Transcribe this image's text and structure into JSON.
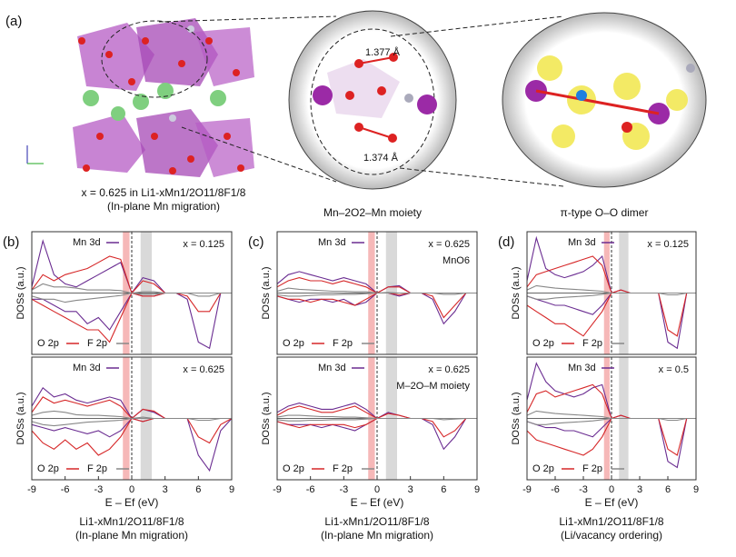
{
  "figure_a": {
    "label": "(a)",
    "bond_lengths": [
      "1.377 Å",
      "1.374 Å"
    ],
    "captions": [
      [
        "x = 0.625 in Li1-xMn1/2O11/8F1/8",
        "(In-plane Mn migration)"
      ],
      [
        "Mn–2O2–Mn moiety"
      ],
      [
        "π-type O–O dimer"
      ]
    ]
  },
  "chart_data": [
    {
      "type": "line",
      "panel_label": "(b)",
      "ylabel": "DOSs (a.u.)",
      "annotation": "x = 0.125",
      "xlim": [
        -9,
        9
      ],
      "ylim": [
        -1,
        1
      ],
      "fermi_level": 0,
      "highlights": [
        {
          "range": [
            -0.8,
            -0.2
          ],
          "color": "#f4a6a6"
        },
        {
          "range": [
            0.8,
            1.8
          ],
          "color": "#cfcfcf"
        }
      ],
      "x": [
        -9,
        -8,
        -7,
        -6,
        -5,
        -4,
        -3,
        -2,
        -1,
        0,
        1,
        2,
        3,
        4,
        5,
        6,
        7,
        8,
        9
      ],
      "series": [
        {
          "name": "Mn 3d",
          "color": "#6a2c91",
          "values": [
            0.1,
            0.85,
            0.3,
            0.15,
            0.1,
            0.2,
            0.3,
            0.4,
            0.5,
            0,
            0.25,
            0.2,
            0,
            0,
            0,
            0,
            0,
            0,
            0
          ],
          "values_down": [
            -0.1,
            -0.1,
            -0.2,
            -0.3,
            -0.3,
            -0.5,
            -0.4,
            -0.6,
            -0.3,
            0,
            -0.05,
            -0.05,
            0,
            0,
            -0.1,
            -0.8,
            -0.9,
            0,
            0
          ]
        },
        {
          "name": "O 2p",
          "color": "#d62728",
          "values": [
            0.05,
            0.3,
            0.2,
            0.3,
            0.35,
            0.4,
            0.5,
            0.6,
            0.55,
            0,
            0.2,
            0.15,
            0,
            0,
            0,
            0,
            0,
            0,
            0
          ],
          "values_down": [
            -0.1,
            -0.2,
            -0.3,
            -0.4,
            -0.5,
            -0.6,
            -0.6,
            -0.8,
            -0.4,
            0,
            -0.05,
            -0.05,
            0,
            0,
            -0.05,
            -0.3,
            -0.3,
            0,
            0
          ]
        },
        {
          "name": "F 2p",
          "color": "#888888",
          "values": [
            0.05,
            0.15,
            0.1,
            0.1,
            0.08,
            0.05,
            0.05,
            0.05,
            0.04,
            0,
            0.02,
            0.02,
            0,
            0,
            0,
            0,
            0,
            0,
            0
          ],
          "values_down": [
            -0.05,
            -0.1,
            -0.1,
            -0.15,
            -0.12,
            -0.1,
            -0.08,
            -0.06,
            -0.04,
            0,
            -0.02,
            -0.02,
            0,
            0,
            0,
            -0.05,
            -0.05,
            0,
            0
          ]
        }
      ]
    },
    {
      "type": "line",
      "ylabel": "DOSs (a.u.)",
      "annotation": "x = 0.625",
      "xlabel": "E – Ef (eV)",
      "caption": [
        "Li1-xMn1/2O11/8F1/8",
        "(In-plane Mn migration)"
      ],
      "xlim": [
        -9,
        9
      ],
      "ylim": [
        -1,
        1
      ],
      "xticks": [
        -9,
        -6,
        -3,
        0,
        3,
        6,
        9
      ],
      "fermi_level": 0,
      "highlights": [
        {
          "range": [
            -0.8,
            -0.2
          ],
          "color": "#f4a6a6"
        },
        {
          "range": [
            0.8,
            1.8
          ],
          "color": "#cfcfcf"
        }
      ],
      "x": [
        -9,
        -8,
        -7,
        -6,
        -5,
        -4,
        -3,
        -2,
        -1,
        0,
        1,
        2,
        3,
        4,
        5,
        6,
        7,
        8,
        9
      ],
      "series": [
        {
          "name": "Mn 3d",
          "color": "#6a2c91",
          "values": [
            0.2,
            0.5,
            0.35,
            0.4,
            0.3,
            0.25,
            0.3,
            0.35,
            0.3,
            0,
            0.15,
            0.1,
            0,
            0,
            0,
            0,
            0,
            0,
            0
          ],
          "values_down": [
            -0.1,
            -0.15,
            -0.2,
            -0.15,
            -0.2,
            -0.25,
            -0.2,
            -0.3,
            -0.2,
            0,
            -0.05,
            0,
            0,
            0,
            0,
            -0.6,
            -0.85,
            -0.2,
            0
          ]
        },
        {
          "name": "O 2p",
          "color": "#d62728",
          "values": [
            0.1,
            0.35,
            0.25,
            0.3,
            0.25,
            0.2,
            0.25,
            0.3,
            0.2,
            0,
            0.15,
            0.12,
            0,
            0,
            0,
            0,
            0,
            0,
            0
          ],
          "values_down": [
            -0.2,
            -0.4,
            -0.5,
            -0.35,
            -0.5,
            -0.4,
            -0.6,
            -0.5,
            -0.3,
            0,
            -0.05,
            0,
            0,
            0,
            0,
            -0.3,
            -0.4,
            -0.1,
            0
          ]
        },
        {
          "name": "F 2p",
          "color": "#888888",
          "values": [
            0.05,
            0.1,
            0.12,
            0.1,
            0.06,
            0.05,
            0.05,
            0.04,
            0.03,
            0,
            0.02,
            0,
            0,
            0,
            0,
            0,
            0,
            0,
            0
          ],
          "values_down": [
            -0.05,
            -0.1,
            -0.12,
            -0.1,
            -0.08,
            -0.06,
            -0.05,
            -0.04,
            -0.03,
            0,
            0,
            0,
            0,
            0,
            0,
            -0.03,
            -0.03,
            0,
            0
          ]
        }
      ]
    },
    {
      "type": "line",
      "panel_label": "(c)",
      "ylabel": "DOSs (a.u.)",
      "annotation": "x = 0.625",
      "note": "MnO6",
      "xlim": [
        -9,
        9
      ],
      "ylim": [
        -1,
        1
      ],
      "fermi_level": 0,
      "highlights": [
        {
          "range": [
            -0.8,
            -0.2
          ],
          "color": "#f4a6a6"
        },
        {
          "range": [
            0.8,
            1.8
          ],
          "color": "#cfcfcf"
        }
      ],
      "x": [
        -9,
        -8,
        -7,
        -6,
        -5,
        -4,
        -3,
        -2,
        -1,
        0,
        1,
        2,
        3,
        4,
        5,
        6,
        7,
        8,
        9
      ],
      "series": [
        {
          "name": "Mn 3d",
          "color": "#6a2c91",
          "values": [
            0.15,
            0.3,
            0.35,
            0.3,
            0.25,
            0.2,
            0.25,
            0.2,
            0.15,
            0,
            0.1,
            0.12,
            0,
            0,
            0,
            0,
            0,
            0,
            0
          ],
          "values_down": [
            -0.05,
            -0.1,
            -0.15,
            -0.1,
            -0.1,
            -0.15,
            -0.1,
            -0.2,
            -0.15,
            0,
            0,
            -0.05,
            0,
            0,
            -0.1,
            -0.5,
            -0.3,
            0,
            0
          ]
        },
        {
          "name": "O 2p",
          "color": "#d62728",
          "values": [
            0.1,
            0.2,
            0.25,
            0.2,
            0.2,
            0.15,
            0.2,
            0.15,
            0.1,
            0,
            0.1,
            0.1,
            0,
            0,
            0,
            0,
            0,
            0,
            0
          ],
          "values_down": [
            -0.05,
            -0.1,
            -0.1,
            -0.15,
            -0.1,
            -0.1,
            -0.15,
            -0.2,
            -0.1,
            0,
            0,
            -0.03,
            0,
            0,
            -0.05,
            -0.4,
            -0.2,
            0,
            0
          ]
        },
        {
          "name": "F 2p",
          "color": "#888888",
          "values": [
            0.03,
            0.08,
            0.06,
            0.05,
            0.04,
            0.03,
            0.03,
            0.02,
            0.02,
            0,
            0.01,
            0,
            0,
            0,
            0,
            0,
            0,
            0,
            0
          ],
          "values_down": [
            -0.03,
            -0.05,
            -0.05,
            -0.04,
            -0.03,
            -0.03,
            -0.02,
            -0.02,
            -0.01,
            0,
            0,
            0,
            0,
            0,
            0,
            -0.02,
            -0.02,
            0,
            0
          ]
        }
      ]
    },
    {
      "type": "line",
      "ylabel": "DOSs (a.u.)",
      "annotation": "x = 0.625",
      "note": "M–2O–M moiety",
      "xlabel": "E – Ef (eV)",
      "caption": [
        "Li1-xMn1/2O11/8F1/8",
        "(In-plane Mn migration)"
      ],
      "xlim": [
        -9,
        9
      ],
      "ylim": [
        -1,
        1
      ],
      "xticks": [
        -9,
        -6,
        -3,
        0,
        3,
        6,
        9
      ],
      "fermi_level": 0,
      "highlights": [
        {
          "range": [
            -0.8,
            -0.2
          ],
          "color": "#f4a6a6"
        },
        {
          "range": [
            0.8,
            1.8
          ],
          "color": "#cfcfcf"
        }
      ],
      "x": [
        -9,
        -8,
        -7,
        -6,
        -5,
        -4,
        -3,
        -2,
        -1,
        0,
        1,
        2,
        3,
        4,
        5,
        6,
        7,
        8,
        9
      ],
      "series": [
        {
          "name": "Mn 3d",
          "color": "#6a2c91",
          "values": [
            0.1,
            0.2,
            0.25,
            0.2,
            0.15,
            0.15,
            0.2,
            0.25,
            0.15,
            0,
            0.1,
            0.05,
            0,
            0,
            0,
            0,
            0,
            0,
            0
          ],
          "values_down": [
            -0.05,
            -0.1,
            -0.1,
            -0.1,
            -0.15,
            -0.1,
            -0.15,
            -0.2,
            -0.1,
            0,
            0,
            0,
            0,
            0,
            -0.1,
            -0.5,
            -0.3,
            0,
            0
          ]
        },
        {
          "name": "O 2p",
          "color": "#d62728",
          "values": [
            0.05,
            0.15,
            0.2,
            0.15,
            0.1,
            0.1,
            0.15,
            0.2,
            0.1,
            0,
            0.08,
            0.05,
            0,
            0,
            0,
            0,
            0,
            0,
            0
          ],
          "values_down": [
            -0.05,
            -0.1,
            -0.15,
            -0.1,
            -0.1,
            -0.1,
            -0.1,
            -0.15,
            -0.1,
            0,
            0,
            0,
            0,
            0,
            -0.05,
            -0.3,
            -0.2,
            0,
            0
          ]
        },
        {
          "name": "F 2p",
          "color": "#888888",
          "values": [
            0.02,
            0.05,
            0.05,
            0.04,
            0.03,
            0.03,
            0.02,
            0.02,
            0.01,
            0,
            0,
            0,
            0,
            0,
            0,
            0,
            0,
            0,
            0
          ],
          "values_down": [
            -0.02,
            -0.04,
            -0.04,
            -0.03,
            -0.03,
            -0.02,
            -0.02,
            -0.02,
            -0.01,
            0,
            0,
            0,
            0,
            0,
            0,
            -0.02,
            -0.01,
            0,
            0
          ]
        }
      ]
    },
    {
      "type": "line",
      "panel_label": "(d)",
      "ylabel": "DOSs (a.u.)",
      "annotation": "x = 0.125",
      "xlim": [
        -9,
        9
      ],
      "ylim": [
        -1,
        1
      ],
      "fermi_level": 0,
      "highlights": [
        {
          "range": [
            -0.8,
            -0.2
          ],
          "color": "#f4a6a6"
        },
        {
          "range": [
            0.8,
            1.8
          ],
          "color": "#cfcfcf"
        }
      ],
      "x": [
        -9,
        -8,
        -7,
        -6,
        -5,
        -4,
        -3,
        -2,
        -1,
        0,
        1,
        2,
        3,
        4,
        5,
        6,
        7,
        8,
        9
      ],
      "series": [
        {
          "name": "Mn 3d",
          "color": "#6a2c91",
          "values": [
            0.2,
            0.9,
            0.4,
            0.3,
            0.25,
            0.3,
            0.35,
            0.45,
            0.6,
            0,
            0.05,
            0,
            0,
            0,
            0,
            0,
            0,
            0,
            0
          ],
          "values_down": [
            -0.05,
            -0.1,
            -0.15,
            -0.2,
            -0.2,
            -0.25,
            -0.3,
            -0.35,
            -0.2,
            0,
            0,
            0,
            0,
            0,
            0,
            -0.8,
            -0.9,
            0,
            0
          ]
        },
        {
          "name": "O 2p",
          "color": "#d62728",
          "values": [
            0.1,
            0.3,
            0.35,
            0.4,
            0.45,
            0.5,
            0.55,
            0.6,
            0.45,
            0,
            0.05,
            0,
            0,
            0,
            0,
            0,
            0,
            0,
            0
          ],
          "values_down": [
            -0.2,
            -0.3,
            -0.4,
            -0.5,
            -0.5,
            -0.6,
            -0.7,
            -0.5,
            -0.3,
            0,
            0,
            0,
            0,
            0,
            0,
            -0.6,
            -0.7,
            0,
            0
          ]
        },
        {
          "name": "F 2p",
          "color": "#888888",
          "values": [
            0.05,
            0.12,
            0.1,
            0.08,
            0.07,
            0.06,
            0.05,
            0.04,
            0.03,
            0,
            0,
            0,
            0,
            0,
            0,
            0,
            0,
            0,
            0
          ],
          "values_down": [
            -0.05,
            -0.1,
            -0.1,
            -0.08,
            -0.07,
            -0.06,
            -0.05,
            -0.04,
            -0.02,
            0,
            0,
            0,
            0,
            0,
            0,
            -0.03,
            -0.03,
            0,
            0
          ]
        }
      ]
    },
    {
      "type": "line",
      "ylabel": "DOSs (a.u.)",
      "annotation": "x = 0.5",
      "xlabel": "E – Ef (eV)",
      "caption": [
        "Li1-xMn1/2O11/8F1/8",
        "(Li/vacancy ordering)"
      ],
      "xlim": [
        -9,
        9
      ],
      "ylim": [
        -1,
        1
      ],
      "xticks": [
        -9,
        -6,
        -3,
        0,
        3,
        6,
        9
      ],
      "fermi_level": 0,
      "highlights": [
        {
          "range": [
            -0.8,
            -0.2
          ],
          "color": "#f4a6a6"
        },
        {
          "range": [
            0.8,
            1.8
          ],
          "color": "#cfcfcf"
        }
      ],
      "x": [
        -9,
        -8,
        -7,
        -6,
        -5,
        -4,
        -3,
        -2,
        -1,
        0,
        1,
        2,
        3,
        4,
        5,
        6,
        7,
        8,
        9
      ],
      "series": [
        {
          "name": "Mn 3d",
          "color": "#6a2c91",
          "values": [
            0.3,
            0.9,
            0.6,
            0.45,
            0.4,
            0.35,
            0.4,
            0.5,
            0.55,
            0,
            0.05,
            0,
            0,
            0,
            0,
            0,
            0,
            0,
            0
          ],
          "values_down": [
            -0.05,
            -0.1,
            -0.15,
            -0.15,
            -0.2,
            -0.2,
            -0.25,
            -0.3,
            -0.15,
            0,
            0,
            0,
            0,
            0,
            0,
            -0.7,
            -0.8,
            0,
            0
          ]
        },
        {
          "name": "O 2p",
          "color": "#d62728",
          "values": [
            0.1,
            0.4,
            0.45,
            0.35,
            0.4,
            0.45,
            0.5,
            0.55,
            0.4,
            0,
            0.05,
            0,
            0,
            0,
            0,
            0,
            0,
            0,
            0
          ],
          "values_down": [
            -0.2,
            -0.35,
            -0.4,
            -0.45,
            -0.5,
            -0.55,
            -0.6,
            -0.5,
            -0.3,
            0,
            0,
            0,
            0,
            0,
            0,
            -0.5,
            -0.6,
            0,
            0
          ]
        },
        {
          "name": "F 2p",
          "color": "#888888",
          "values": [
            0.05,
            0.12,
            0.1,
            0.08,
            0.07,
            0.06,
            0.05,
            0.04,
            0.03,
            0,
            0,
            0,
            0,
            0,
            0,
            0,
            0,
            0,
            0
          ],
          "values_down": [
            -0.05,
            -0.1,
            -0.1,
            -0.08,
            -0.07,
            -0.06,
            -0.05,
            -0.04,
            -0.02,
            0,
            0,
            0,
            0,
            0,
            0,
            -0.03,
            -0.03,
            0,
            0
          ]
        }
      ]
    }
  ]
}
